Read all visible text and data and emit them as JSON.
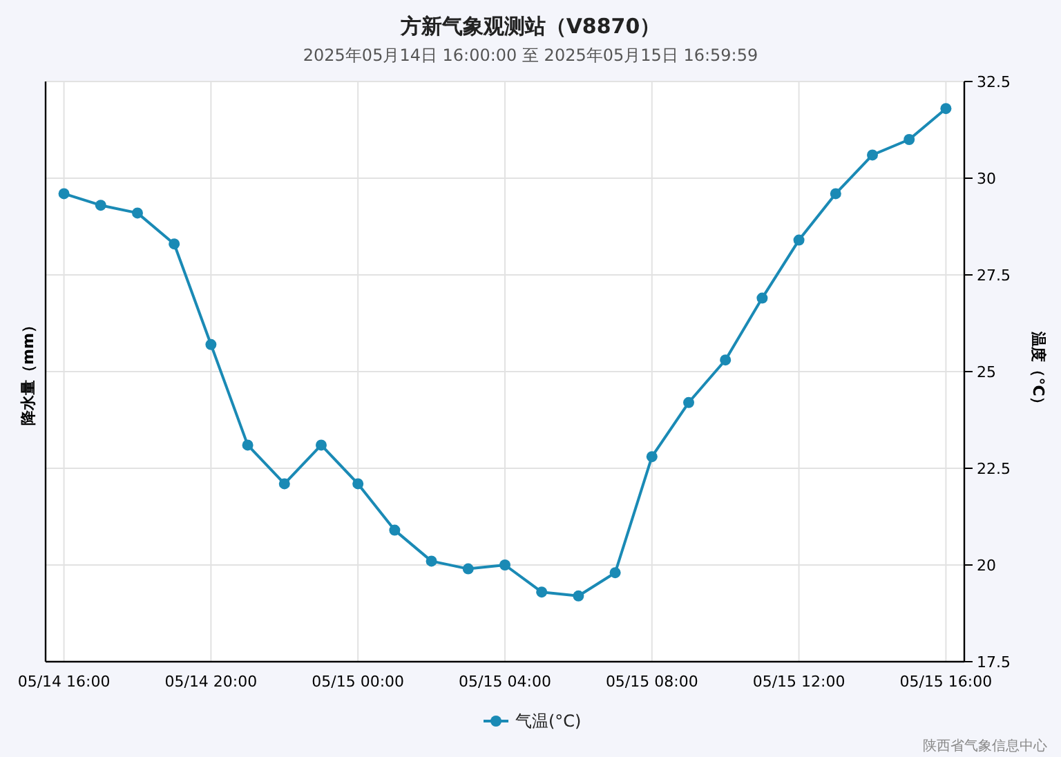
{
  "chart_data": {
    "type": "line",
    "title": "方新气象观测站（V8870）",
    "subtitle": "2025年05月14日 16:00:00 至 2025年05月15日 16:59:59",
    "ylabel": "降水量（mm）",
    "y2label": "温度（°C）",
    "x": [
      "2025-05-14T16:00",
      "2025-05-14T17:00",
      "2025-05-14T18:00",
      "2025-05-14T19:00",
      "2025-05-14T20:00",
      "2025-05-14T21:00",
      "2025-05-14T22:00",
      "2025-05-14T23:00",
      "2025-05-15T00:00",
      "2025-05-15T01:00",
      "2025-05-15T02:00",
      "2025-05-15T03:00",
      "2025-05-15T04:00",
      "2025-05-15T05:00",
      "2025-05-15T06:00",
      "2025-05-15T07:00",
      "2025-05-15T08:00",
      "2025-05-15T09:00",
      "2025-05-15T10:00",
      "2025-05-15T11:00",
      "2025-05-15T12:00",
      "2025-05-15T13:00",
      "2025-05-15T14:00",
      "2025-05-15T15:00",
      "2025-05-15T16:00"
    ],
    "series": [
      {
        "name": "气温(°C)",
        "color": "#1a8ab5",
        "axis": "y2",
        "values": [
          29.6,
          29.3,
          29.1,
          28.3,
          25.7,
          23.1,
          22.1,
          23.1,
          22.1,
          20.9,
          20.1,
          19.9,
          20.0,
          19.3,
          19.2,
          19.8,
          22.8,
          24.2,
          25.3,
          26.9,
          28.4,
          29.6,
          30.6,
          31.0,
          31.8
        ]
      }
    ],
    "xlim": [
      "2025-05-14T15:30",
      "2025-05-15T16:30"
    ],
    "xticks": [
      {
        "value": "2025-05-14T16:00",
        "label": "05/14 16:00"
      },
      {
        "value": "2025-05-14T20:00",
        "label": "05/14 20:00"
      },
      {
        "value": "2025-05-15T00:00",
        "label": "05/15 00:00"
      },
      {
        "value": "2025-05-15T04:00",
        "label": "05/15 04:00"
      },
      {
        "value": "2025-05-15T08:00",
        "label": "05/15 08:00"
      },
      {
        "value": "2025-05-15T12:00",
        "label": "05/15 12:00"
      },
      {
        "value": "2025-05-15T16:00",
        "label": "05/15 16:00"
      }
    ],
    "y2lim": [
      17.5,
      32.5
    ],
    "y2ticks": [
      17.5,
      20,
      22.5,
      25,
      27.5,
      30,
      32.5
    ],
    "grid": true,
    "legend": "bottom",
    "marker": "circle",
    "line_style": "solid",
    "annotations": [
      "陕西省气象信息中心"
    ]
  }
}
